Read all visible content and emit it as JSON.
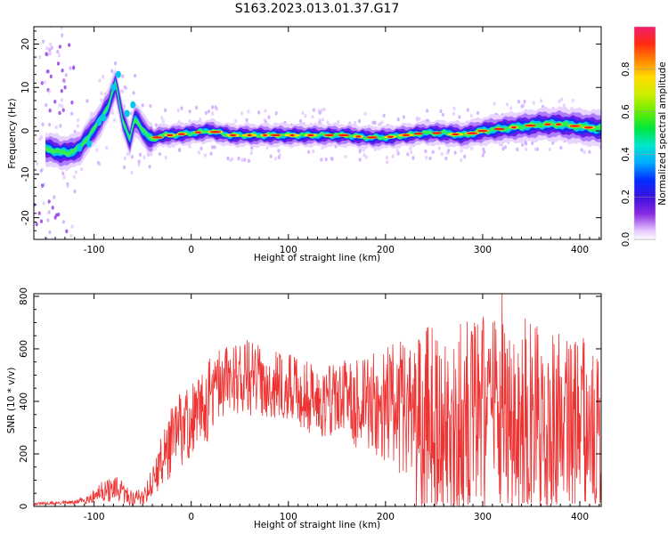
{
  "chart_data": [
    {
      "type": "heatmap",
      "title": "S163.2023.013.01.37.G17",
      "xlabel": "Height of straight line (km)",
      "ylabel": "Frequency (Hz)",
      "xlim": [
        -162,
        422
      ],
      "ylim": [
        -25,
        24
      ],
      "xticks": [
        -100,
        0,
        100,
        200,
        300,
        400
      ],
      "yticks": [
        -20,
        -10,
        0,
        10,
        20
      ],
      "colorbar": {
        "label": "Normalized spectral amplitude",
        "range": [
          0.0,
          1.0
        ],
        "ticks": [
          "0.0",
          "0.2",
          "0.4",
          "0.6",
          "0.8"
        ],
        "tick_values": [
          0.0,
          0.2,
          0.4,
          0.6,
          0.8
        ]
      },
      "ridge": {
        "x": [
          -150,
          -135,
          -125,
          -115,
          -105,
          -95,
          -85,
          -78,
          -70,
          -63,
          -58,
          -52,
          -46,
          -40,
          -30,
          -20,
          0,
          20,
          40,
          60,
          80,
          100,
          120,
          140,
          160,
          180,
          200,
          220,
          240,
          260,
          280,
          300,
          320,
          340,
          360,
          380,
          400,
          420
        ],
        "y": [
          -4,
          -5,
          -5,
          -4,
          -1,
          2,
          6,
          11,
          2,
          -2,
          3,
          1,
          -1,
          -2,
          -1,
          -1,
          -0.5,
          0,
          -1,
          -1,
          -1,
          -1,
          -1,
          -1,
          -1,
          -1.5,
          -1.5,
          -1,
          -0.5,
          -0.5,
          -1,
          0,
          0.5,
          1,
          1.5,
          1.5,
          1,
          0.5
        ]
      },
      "grid": false
    },
    {
      "type": "line",
      "title": "",
      "xlabel": "Height of straight line (km)",
      "ylabel": "SNR (10 * v/v)",
      "xlim": [
        -162,
        422
      ],
      "ylim": [
        0,
        810
      ],
      "xticks": [
        -100,
        0,
        100,
        200,
        300,
        400
      ],
      "yticks": [
        0,
        200,
        400,
        600,
        800
      ],
      "series": [
        {
          "color": "#ee3333",
          "envelope_x": [
            -162,
            -120,
            -105,
            -90,
            -75,
            -60,
            -50,
            -40,
            -30,
            -20,
            -10,
            0,
            10,
            20,
            30,
            40,
            50,
            60,
            70,
            80,
            90,
            100,
            110,
            120,
            130,
            140,
            150,
            160,
            170,
            180,
            190,
            200,
            210,
            220,
            230,
            240,
            250,
            260,
            270,
            280,
            290,
            300,
            310,
            320,
            330,
            340,
            350,
            360,
            370,
            380,
            390,
            400,
            410,
            422
          ],
          "envelope_mean": [
            10,
            15,
            30,
            60,
            60,
            30,
            40,
            90,
            180,
            250,
            300,
            320,
            360,
            420,
            470,
            490,
            500,
            490,
            480,
            470,
            460,
            450,
            440,
            420,
            400,
            410,
            420,
            400,
            390,
            400,
            390,
            380,
            390,
            380,
            370,
            360,
            350,
            350,
            340,
            330,
            340,
            350,
            350,
            360,
            340,
            350,
            330,
            340,
            330,
            320,
            330,
            330,
            320,
            320
          ],
          "envelope_spread": [
            5,
            8,
            20,
            40,
            50,
            30,
            40,
            60,
            100,
            140,
            150,
            160,
            160,
            150,
            140,
            140,
            150,
            150,
            140,
            130,
            130,
            130,
            130,
            140,
            140,
            150,
            150,
            160,
            170,
            180,
            200,
            220,
            250,
            280,
            300,
            330,
            340,
            350,
            360,
            370,
            380,
            390,
            400,
            400,
            390,
            380,
            370,
            360,
            350,
            340,
            330,
            320,
            310,
            300
          ],
          "peak": {
            "x": 320,
            "y": 810
          }
        }
      ],
      "grid": false
    }
  ]
}
